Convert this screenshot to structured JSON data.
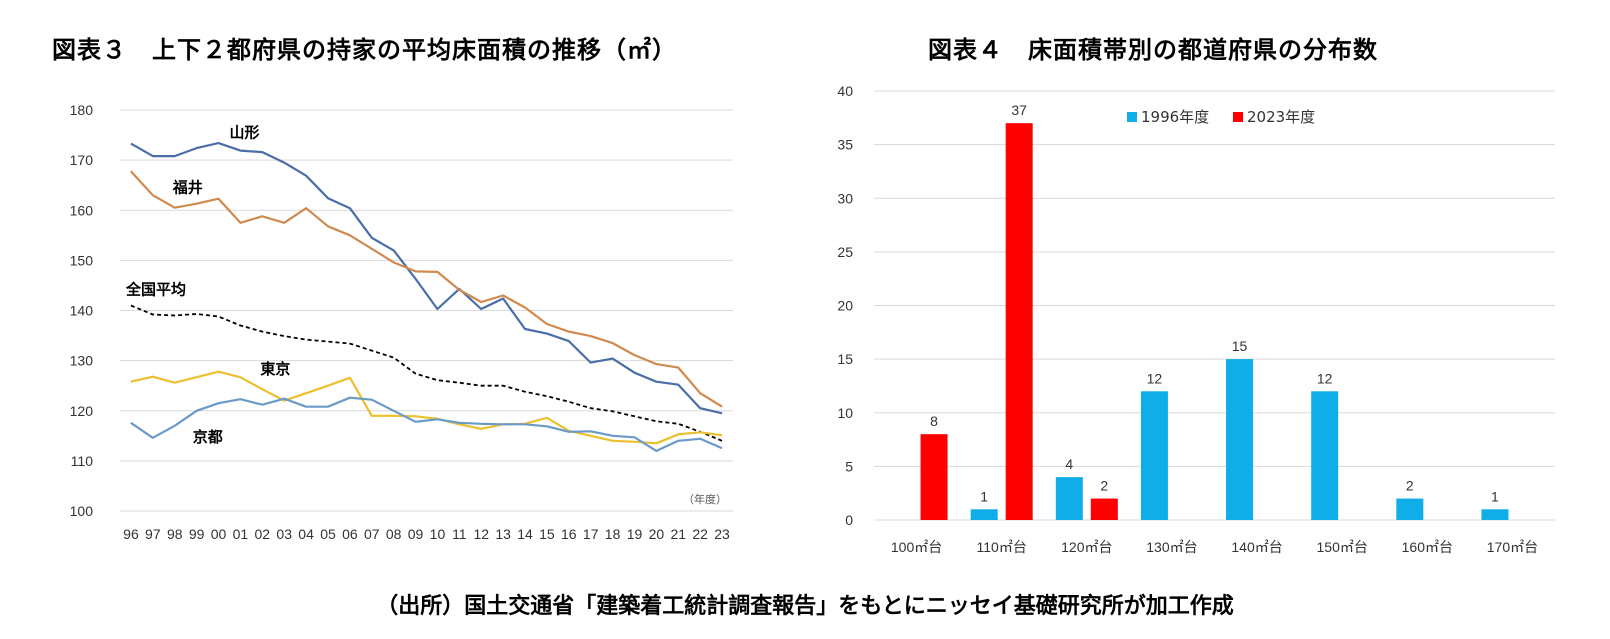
{
  "titles": {
    "fig3": "図表３　上下２都府県の持家の平均床面積の推移（㎡）",
    "fig4": "図表４　床面積帯別の都道府県の分布数"
  },
  "source": "（出所）国土交通省「建築着工統計調査報告」をもとにニッセイ基礎研究所が加工作成",
  "chart_data": [
    {
      "type": "line",
      "x": [
        "96",
        "97",
        "98",
        "99",
        "00",
        "01",
        "02",
        "03",
        "04",
        "05",
        "06",
        "07",
        "08",
        "09",
        "10",
        "11",
        "12",
        "13",
        "14",
        "15",
        "16",
        "17",
        "18",
        "19",
        "20",
        "21",
        "22",
        "23"
      ],
      "xnote": "（年度）",
      "ylim": [
        100,
        180
      ],
      "yticks": [
        100,
        110,
        120,
        130,
        140,
        150,
        160,
        170,
        180
      ],
      "grid": true,
      "series": [
        {
          "name": "山形",
          "color": "#4a6ea8",
          "dash": false,
          "values": [
            173.3,
            170.8,
            170.8,
            172.4,
            173.4,
            171.9,
            171.6,
            169.5,
            166.9,
            162.4,
            160.4,
            154.5,
            152.0,
            146.3,
            140.3,
            144.3,
            140.3,
            142.4,
            136.3,
            135.4,
            133.9,
            129.6,
            130.4,
            127.6,
            125.8,
            125.2,
            120.5,
            119.5
          ]
        },
        {
          "name": "福井",
          "color": "#d08a4e",
          "dash": false,
          "values": [
            167.8,
            163.0,
            160.5,
            161.3,
            162.3,
            157.5,
            158.8,
            157.5,
            160.4,
            156.8,
            155.0,
            152.3,
            149.6,
            147.8,
            147.7,
            144.1,
            141.7,
            143.0,
            140.6,
            137.3,
            135.8,
            134.9,
            133.5,
            131.1,
            129.3,
            128.6,
            123.5,
            120.8
          ]
        },
        {
          "name": "全国平均",
          "color": "#000000",
          "dash": true,
          "values": [
            141.0,
            139.2,
            139.0,
            139.3,
            138.8,
            137.0,
            135.8,
            134.9,
            134.2,
            133.8,
            133.4,
            132.0,
            130.6,
            127.4,
            126.1,
            125.6,
            125.0,
            125.0,
            123.8,
            122.9,
            121.8,
            120.5,
            119.9,
            118.9,
            117.9,
            117.4,
            115.8,
            114.0
          ]
        },
        {
          "name": "東京",
          "color": "#ecbf2e",
          "dash": false,
          "values": [
            125.8,
            126.8,
            125.6,
            126.7,
            127.8,
            126.7,
            124.3,
            122.0,
            123.5,
            125.0,
            126.6,
            119.0,
            119.0,
            118.9,
            118.4,
            117.3,
            116.4,
            117.3,
            117.4,
            118.6,
            116.0,
            115.0,
            114.0,
            113.8,
            113.5,
            115.3,
            115.7,
            115.1
          ]
        },
        {
          "name": "京都",
          "color": "#6a9ac8",
          "dash": false,
          "values": [
            117.6,
            114.6,
            117.0,
            120.0,
            121.5,
            122.3,
            121.2,
            122.4,
            120.8,
            120.8,
            122.6,
            122.2,
            120.0,
            117.8,
            118.3,
            117.6,
            117.4,
            117.3,
            117.3,
            116.9,
            115.8,
            115.9,
            115.0,
            114.7,
            112.0,
            114.0,
            114.4,
            112.5
          ]
        }
      ]
    },
    {
      "type": "bar",
      "categories": [
        "100㎡台",
        "110㎡台",
        "120㎡台",
        "130㎡台",
        "140㎡台",
        "150㎡台",
        "160㎡台",
        "170㎡台"
      ],
      "ylim": [
        0,
        40
      ],
      "yticks": [
        0,
        5,
        10,
        15,
        20,
        25,
        30,
        35,
        40
      ],
      "grid": true,
      "legend_position": "top",
      "series": [
        {
          "name": "1996年度",
          "color": "#10aee8",
          "values": [
            0,
            1,
            4,
            12,
            15,
            12,
            2,
            1
          ]
        },
        {
          "name": "2023年度",
          "color": "#ff0000",
          "values": [
            8,
            37,
            2,
            0,
            0,
            0,
            0,
            0
          ]
        }
      ]
    }
  ]
}
